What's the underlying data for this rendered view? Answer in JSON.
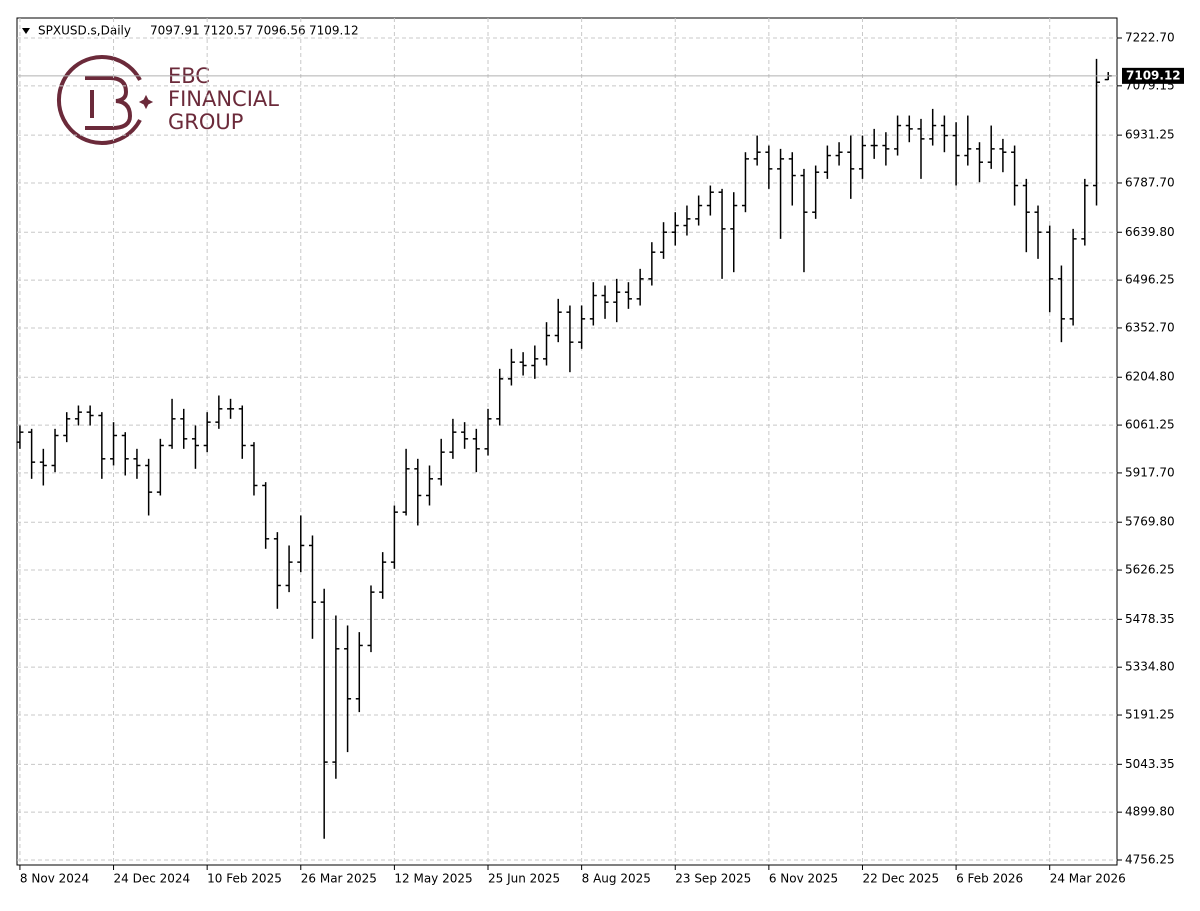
{
  "chart_data": {
    "type": "ohlc",
    "title": "SPXUSD.s,Daily",
    "color": "#000000",
    "watermark": [
      "EBC",
      "FINANCIAL",
      "GROUP"
    ],
    "open": [
      6010,
      6040,
      5950,
      5940,
      6030,
      6080,
      6100,
      6090,
      5960,
      6030,
      5960,
      5940,
      5860,
      6000,
      6080,
      6020,
      6000,
      6070,
      6110,
      6110,
      6000,
      5880,
      5720,
      5580,
      5650,
      5700,
      5530,
      5050,
      5390,
      5240,
      5400,
      5560,
      5650,
      5800,
      5930,
      5850,
      5900,
      5980,
      6040,
      6020,
      5990,
      6080,
      6200,
      6250,
      6240,
      6260,
      6330,
      6400,
      6310,
      6380,
      6450,
      6430,
      6460,
      6440,
      6500,
      6580,
      6640,
      6660,
      6680,
      6720,
      6760,
      6650,
      6720,
      6860,
      6880,
      6830,
      6860,
      6810,
      6700,
      6820,
      6870,
      6880,
      6830,
      6900,
      6900,
      6890,
      6960,
      6950,
      6920,
      6960,
      6930,
      6870,
      6890,
      6850,
      6890,
      6880,
      6780,
      6700,
      6640,
      6500,
      6380,
      6620,
      6780,
      7097.91
    ],
    "high": [
      6060,
      6050,
      5990,
      6050,
      6100,
      6120,
      6120,
      6100,
      6070,
      6040,
      5990,
      5960,
      6020,
      6140,
      6110,
      6060,
      6100,
      6150,
      6140,
      6120,
      6010,
      5890,
      5740,
      5700,
      5790,
      5730,
      5570,
      5490,
      5460,
      5440,
      5580,
      5680,
      5820,
      5990,
      5960,
      5940,
      6020,
      6080,
      6070,
      6050,
      6110,
      6230,
      6290,
      6280,
      6300,
      6370,
      6440,
      6420,
      6420,
      6490,
      6480,
      6500,
      6490,
      6530,
      6610,
      6670,
      6700,
      6720,
      6750,
      6780,
      6770,
      6760,
      6880,
      6930,
      6900,
      6890,
      6880,
      6830,
      6840,
      6900,
      6910,
      6930,
      6930,
      6950,
      6940,
      6990,
      6990,
      6980,
      7010,
      6990,
      6970,
      6990,
      6910,
      6960,
      6920,
      6900,
      6800,
      6720,
      6660,
      6540,
      6650,
      6800,
      7160,
      7120.57
    ],
    "low": [
      5990,
      5900,
      5880,
      5920,
      6010,
      6060,
      6060,
      5900,
      5940,
      5910,
      5900,
      5790,
      5850,
      5990,
      5990,
      5930,
      5980,
      6050,
      6080,
      5960,
      5850,
      5690,
      5510,
      5560,
      5620,
      5420,
      4820,
      5000,
      5080,
      5200,
      5380,
      5540,
      5630,
      5790,
      5760,
      5820,
      5880,
      5960,
      5990,
      5920,
      5970,
      6060,
      6180,
      6210,
      6200,
      6240,
      6310,
      6220,
      6290,
      6360,
      6380,
      6370,
      6410,
      6420,
      6480,
      6560,
      6600,
      6630,
      6660,
      6690,
      6500,
      6520,
      6700,
      6840,
      6770,
      6620,
      6720,
      6520,
      6680,
      6800,
      6840,
      6740,
      6800,
      6860,
      6840,
      6870,
      6910,
      6800,
      6900,
      6880,
      6780,
      6840,
      6790,
      6830,
      6820,
      6720,
      6580,
      6560,
      6400,
      6310,
      6360,
      6600,
      6720,
      7096.56
    ],
    "close": [
      6040,
      5950,
      5940,
      6030,
      6080,
      6100,
      6090,
      5960,
      6030,
      5960,
      5940,
      5860,
      6000,
      6080,
      6020,
      6000,
      6070,
      6110,
      6110,
      6000,
      5880,
      5720,
      5580,
      5650,
      5700,
      5530,
      5050,
      5390,
      5240,
      5400,
      5560,
      5650,
      5800,
      5930,
      5850,
      5900,
      5980,
      6040,
      6020,
      5990,
      6080,
      6200,
      6250,
      6240,
      6260,
      6330,
      6400,
      6310,
      6380,
      6450,
      6430,
      6460,
      6440,
      6500,
      6580,
      6640,
      6660,
      6680,
      6720,
      6760,
      6650,
      6720,
      6860,
      6880,
      6830,
      6860,
      6810,
      6700,
      6820,
      6870,
      6880,
      6830,
      6900,
      6900,
      6890,
      6960,
      6950,
      6920,
      6960,
      6930,
      6870,
      6890,
      6850,
      6890,
      6880,
      6780,
      6700,
      6640,
      6500,
      6380,
      6620,
      6780,
      7090,
      7109.12
    ],
    "xlim": [
      -0.25,
      93.75
    ],
    "xticks": [
      {
        "value": 0,
        "label": "8 Nov 2024"
      },
      {
        "value": 8,
        "label": "24 Dec 2024"
      },
      {
        "value": 16,
        "label": "10 Feb 2025"
      },
      {
        "value": 24,
        "label": "26 Mar 2025"
      },
      {
        "value": 32,
        "label": "12 May 2025"
      },
      {
        "value": 40,
        "label": "25 Jun 2025"
      },
      {
        "value": 48,
        "label": "8 Aug 2025"
      },
      {
        "value": 56,
        "label": "23 Sep 2025"
      },
      {
        "value": 64,
        "label": "6 Nov 2025"
      },
      {
        "value": 72,
        "label": "22 Dec 2025"
      },
      {
        "value": 80,
        "label": "6 Feb 2026"
      },
      {
        "value": 88,
        "label": "24 Mar 2026"
      }
    ],
    "ylim": [
      4741.25,
      7282.7
    ],
    "yticks": [
      4756.25,
      {
        "value": 4899.8,
        "label": "4899.80"
      },
      5043.35,
      5191.25,
      {
        "value": 5334.8,
        "label": "5334.80"
      },
      5478.35,
      5626.25,
      {
        "value": 5769.8,
        "label": "5769.80"
      },
      {
        "value": 5917.7,
        "label": "5917.70"
      },
      6061.25,
      {
        "value": 6204.8,
        "label": "6204.80"
      },
      {
        "value": 6352.7,
        "label": "6352.70"
      },
      6496.25,
      {
        "value": 6639.8,
        "label": "6639.80"
      },
      {
        "value": 6787.7,
        "label": "6787.70"
      },
      6931.25,
      7079.15,
      {
        "value": 7222.7,
        "label": "7222.70"
      }
    ],
    "grid": true
  }
}
